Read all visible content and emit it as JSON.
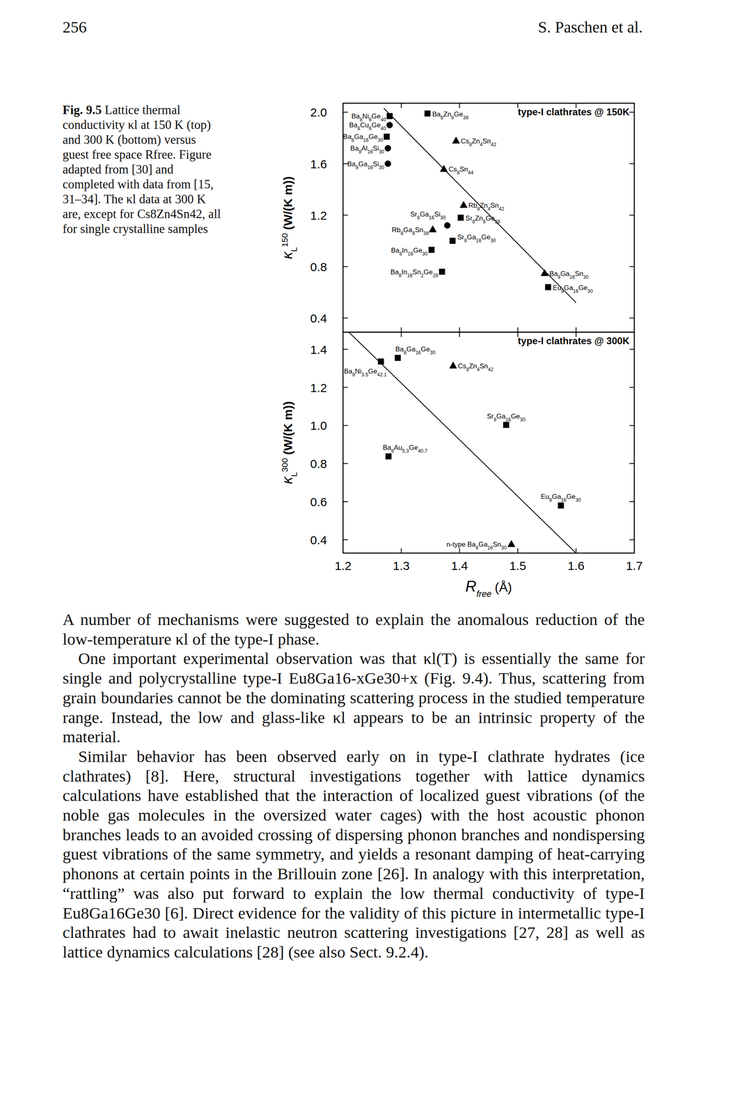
{
  "header": {
    "page_number": "256",
    "running_head": "S. Paschen et al."
  },
  "caption": {
    "label": "Fig. 9.5",
    "text": "Lattice thermal conductivity κl at 150 K (top) and 300 K (bottom) versus guest free space Rfree. Figure adapted from [30] and completed with data from [15, 31–34]. The κl data at 300 K are, except for Cs8Zn4Sn42, all for single crystalline samples"
  },
  "chart_data": [
    {
      "type": "scatter",
      "title": "type-I clathrates @ 150K",
      "ylabel": {
        "symbol": "κ",
        "sub": "L",
        "sup": "150",
        "unit": "(W/(K m))"
      },
      "xlim": [
        1.2,
        1.7
      ],
      "xticks": [
        1.2,
        1.3,
        1.4,
        1.5,
        1.6,
        1.7
      ],
      "ylim": [
        0.29,
        2.07
      ],
      "yticks": [
        0.4,
        0.8,
        1.2,
        1.6,
        {
          "value": 2,
          "label": "2.0"
        }
      ],
      "tick_labels": "y",
      "series": [
        {
          "name": "Ba8Ni6Ge40",
          "marker": "square",
          "color": "#000000",
          "x": [
            1.28
          ],
          "values": [
            1.97
          ]
        },
        {
          "name": "Ba8Cu6Ge40",
          "marker": "circle",
          "color": "#000000",
          "x": [
            1.28
          ],
          "values": [
            1.9
          ]
        },
        {
          "name": "Ba8Ga16Ge30",
          "marker": "square",
          "color": "#000000",
          "x": [
            1.275
          ],
          "values": [
            1.81
          ]
        },
        {
          "name": "Ba8Al16Si30",
          "marker": "circle",
          "color": "#000000",
          "x": [
            1.277
          ],
          "values": [
            1.72
          ]
        },
        {
          "name": "Ba8Ga16Si30",
          "marker": "circle",
          "color": "#000000",
          "x": [
            1.277
          ],
          "values": [
            1.6
          ]
        },
        {
          "name": "Ba8Zn8Ge38",
          "marker": "square",
          "color": "#000000",
          "x": [
            1.345
          ],
          "values": [
            1.99
          ]
        },
        {
          "name": "Cs8Zn4Sn42",
          "marker": "triangle",
          "color": "#000000",
          "x": [
            1.394
          ],
          "values": [
            1.78
          ]
        },
        {
          "name": "Cs8Sn44",
          "marker": "triangle",
          "color": "#000000",
          "x": [
            1.373
          ],
          "values": [
            1.56
          ]
        },
        {
          "name": "Rb8Zn4Sn42",
          "marker": "triangle",
          "color": "#000000",
          "x": [
            1.407
          ],
          "values": [
            1.28
          ]
        },
        {
          "name": "Sr8Zn8Ge38",
          "marker": "square",
          "color": "#000000",
          "x": [
            1.402
          ],
          "values": [
            1.18
          ]
        },
        {
          "name": "Sr8Ga16Si30",
          "marker": "circle",
          "color": "#000000",
          "x": [
            1.379
          ],
          "values": [
            1.12
          ]
        },
        {
          "name": "Rb8Ga8Sn38",
          "marker": "triangle",
          "color": "#000000",
          "x": [
            1.354
          ],
          "values": [
            1.09
          ]
        },
        {
          "name": "Sr8Ga16Ge30",
          "marker": "square",
          "color": "#000000",
          "x": [
            1.388
          ],
          "values": [
            1.0
          ]
        },
        {
          "name": "Ba8In16Ge30",
          "marker": "square",
          "color": "#000000",
          "x": [
            1.352
          ],
          "values": [
            0.93
          ]
        },
        {
          "name": "Ba8In16Sn2Ge28",
          "marker": "square",
          "color": "#000000",
          "x": [
            1.37
          ],
          "values": [
            0.76
          ]
        },
        {
          "name": "Ba8Ga16Sn30",
          "marker": "triangle",
          "color": "#000000",
          "x": [
            1.546
          ],
          "values": [
            0.75
          ]
        },
        {
          "name": "Eu8Ga16Ge30",
          "marker": "square",
          "color": "#000000",
          "x": [
            1.552
          ],
          "values": [
            0.64
          ]
        },
        {
          "type": "line",
          "color": "#000000",
          "x": [
            1.27,
            1.6
          ],
          "values": [
            2.03,
            0.52
          ]
        }
      ]
    },
    {
      "type": "scatter",
      "title": "type-I clathrates @ 300K",
      "ylabel": {
        "symbol": "κ",
        "sub": "L",
        "sup": "300",
        "unit": "(W/(K m))"
      },
      "xlabel": {
        "symbol": "R",
        "sub": "free",
        "unit": "(Å)"
      },
      "xlim": [
        1.2,
        1.7
      ],
      "xticks": [
        1.2,
        1.3,
        1.4,
        1.5,
        1.6,
        1.7
      ],
      "ylim": [
        0.33,
        1.49
      ],
      "yticks": [
        0.4,
        0.6,
        0.8,
        {
          "value": 1,
          "label": "1.0"
        },
        1.2,
        1.4
      ],
      "series": [
        {
          "name": "Ba8Ni3.5Ge42.1",
          "marker": "square",
          "color": "#000000",
          "x": [
            1.265
          ],
          "values": [
            1.336
          ]
        },
        {
          "name": "Ba8Ga16Ge30",
          "marker": "square",
          "color": "#000000",
          "x": [
            1.294
          ],
          "values": [
            1.355
          ]
        },
        {
          "name": "Cs8Zn4Sn42",
          "marker": "triangle",
          "color": "#000000",
          "x": [
            1.389
          ],
          "values": [
            1.315
          ]
        },
        {
          "name": "Ba8Au5.3Ge40.7",
          "marker": "square",
          "color": "#000000",
          "x": [
            1.278
          ],
          "values": [
            0.838
          ]
        },
        {
          "name": "Sr8Ga16Ge30",
          "marker": "square",
          "color": "#000000",
          "x": [
            1.48
          ],
          "values": [
            1.003
          ]
        },
        {
          "name": "Eu8Ga16Ge30",
          "marker": "square",
          "color": "#000000",
          "x": [
            1.574
          ],
          "values": [
            0.58
          ]
        },
        {
          "name": "n-type Ba8Ga16Sn30",
          "marker": "triangle",
          "color": "#000000",
          "x": [
            1.489
          ],
          "values": [
            0.378
          ]
        },
        {
          "type": "line",
          "color": "#000000",
          "x": [
            1.21,
            1.6
          ],
          "values": [
            1.49,
            0.33
          ]
        }
      ]
    }
  ],
  "body": {
    "paragraphs": [
      "A number of mechanisms were suggested to explain the anomalous reduction of the low-temperature κl of the type-I phase.",
      "One important experimental observation was that κl(T) is essentially the same for single and polycrystalline type-I Eu8Ga16-xGe30+x (Fig. 9.4). Thus, scattering from grain boundaries cannot be the dominating scattering process in the studied temperature range. Instead, the low and glass-like κl appears to be an intrinsic property of the material.",
      "Similar behavior has been observed early on in type-I clathrate hydrates (ice clathrates) [8]. Here, structural investigations together with lattice dynamics calculations have established that the interaction of localized guest vibrations (of the noble gas molecules in the oversized water cages) with the host acoustic phonon branches leads to an avoided crossing of dispersing phonon branches and nondispersing guest vibrations of the same symmetry, and yields a resonant damping of heat-carrying phonons at certain points in the Brillouin zone [26]. In analogy with this interpretation, “rattling” was also put forward to explain the low thermal conductivity of type-I Eu8Ga16Ge30 [6]. Direct evidence for the validity of this picture in intermetallic type-I clathrates had to await inelastic neutron scattering investigations [27, 28] as well as lattice dynamics calculations [28] (see also Sect. 9.2.4)."
    ]
  }
}
